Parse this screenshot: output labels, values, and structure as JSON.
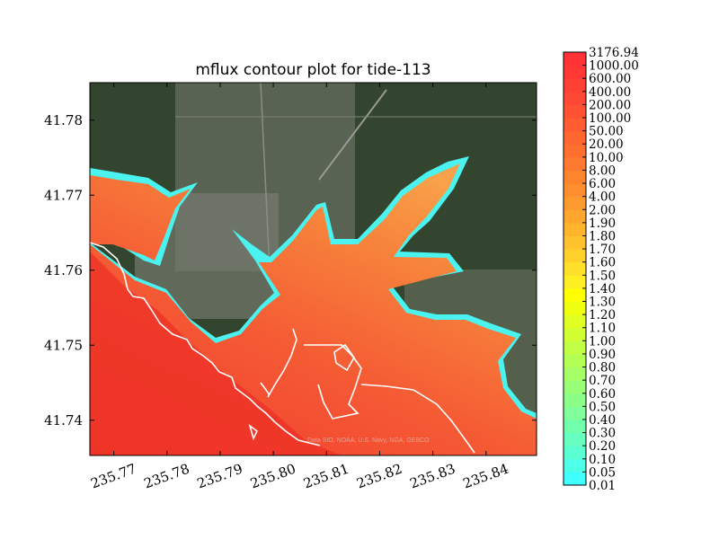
{
  "chart_data": {
    "type": "heatmap",
    "title": "mflux contour plot for tide-113",
    "xlabel": "",
    "ylabel": "",
    "xlim": [
      235.7655,
      235.8495
    ],
    "ylim": [
      41.7353,
      41.785
    ],
    "x_ticks": [
      "235.77",
      "235.78",
      "235.79",
      "235.80",
      "235.81",
      "235.82",
      "235.83",
      "235.84"
    ],
    "y_ticks": [
      "41.74",
      "41.75",
      "41.76",
      "41.77",
      "41.78"
    ],
    "background": "satellite imagery",
    "attribution": "Data SIO, NOAA, U.S. Navy, NGA, GEBCO",
    "colorbar": {
      "levels": [
        "0.01",
        "0.05",
        "0.10",
        "0.20",
        "0.30",
        "0.40",
        "0.50",
        "0.60",
        "0.70",
        "0.80",
        "0.90",
        "1.00",
        "1.10",
        "1.20",
        "1.30",
        "1.40",
        "1.50",
        "1.60",
        "1.70",
        "1.80",
        "1.90",
        "2.00",
        "4.00",
        "6.00",
        "8.00",
        "10.00",
        "20.00",
        "50.00",
        "100.00",
        "200.00",
        "400.00",
        "600.00",
        "1000.00",
        "3176.94"
      ],
      "colors": [
        "#40ffff",
        "#4dffe6",
        "#5affd2",
        "#66ffc0",
        "#72ffad",
        "#80ff9a",
        "#8cff88",
        "#99ff77",
        "#a6ff66",
        "#b3ff55",
        "#c2ff44",
        "#d2ff33",
        "#e0ff22",
        "#f0ff10",
        "#ffff00",
        "#ffee22",
        "#ffe028",
        "#ffd02a",
        "#ffc22c",
        "#ffb42c",
        "#ffa62c",
        "#ff9a2e",
        "#ff8e2e",
        "#ff842e",
        "#ff7a30",
        "#ff7030",
        "#ff6630",
        "#ff5c32",
        "#ff5232",
        "#ff4834",
        "#ff4034",
        "#ff3836",
        "#ff3336"
      ]
    }
  },
  "colors": {
    "frame": "#000000",
    "shoreline": "#ffffff"
  }
}
